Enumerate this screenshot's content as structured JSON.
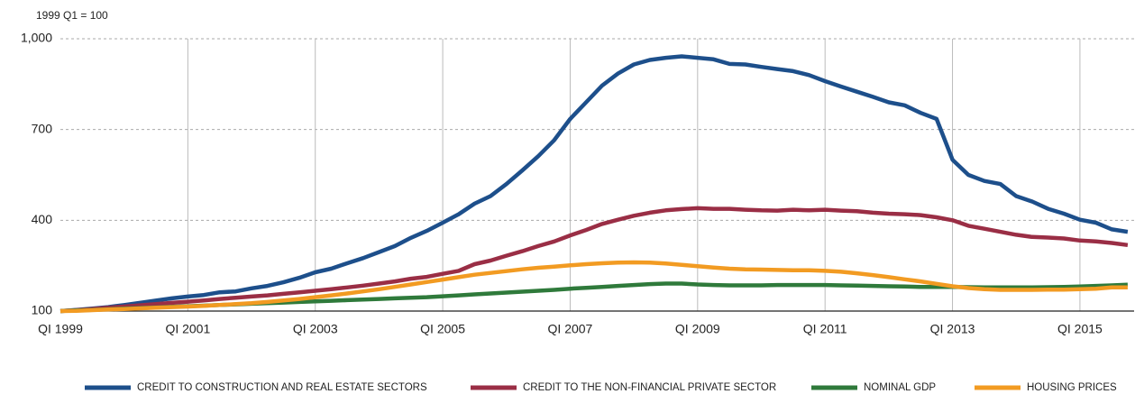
{
  "chart_data": {
    "type": "line",
    "y_unit_label": "1999 Q1 = 100",
    "x": [
      1999,
      1999.25,
      1999.5,
      1999.75,
      2000,
      2000.25,
      2000.5,
      2000.75,
      2001,
      2001.25,
      2001.5,
      2001.75,
      2002,
      2002.25,
      2002.5,
      2002.75,
      2003,
      2003.25,
      2003.5,
      2003.75,
      2004,
      2004.25,
      2004.5,
      2004.75,
      2005,
      2005.25,
      2005.5,
      2005.75,
      2006,
      2006.25,
      2006.5,
      2006.75,
      2007,
      2007.25,
      2007.5,
      2007.75,
      2008,
      2008.25,
      2008.5,
      2008.75,
      2009,
      2009.25,
      2009.5,
      2009.75,
      2010,
      2010.25,
      2010.5,
      2010.75,
      2011,
      2011.25,
      2011.5,
      2011.75,
      2012,
      2012.25,
      2012.5,
      2012.75,
      2013,
      2013.25,
      2013.5,
      2013.75,
      2014,
      2014.25,
      2014.5,
      2014.75,
      2015,
      2015.25,
      2015.5,
      2015.75
    ],
    "series": [
      {
        "name": "CREDIT TO CONSTRUCTION AND REAL ESTATE SECTORS",
        "color": "#1d4f8b",
        "values": [
          100,
          104,
          108,
          113,
          120,
          127,
          135,
          142,
          148,
          153,
          162,
          165,
          175,
          183,
          195,
          210,
          228,
          240,
          258,
          275,
          295,
          315,
          342,
          365,
          392,
          420,
          455,
          480,
          520,
          565,
          612,
          665,
          735,
          790,
          845,
          885,
          915,
          930,
          937,
          942,
          937,
          932,
          917,
          915,
          907,
          900,
          893,
          880,
          860,
          842,
          825,
          808,
          790,
          780,
          755,
          735,
          600,
          550,
          530,
          520,
          480,
          462,
          438,
          422,
          402,
          392,
          370,
          362
        ]
      },
      {
        "name": "CREDIT TO THE NON-FINANCIAL PRIVATE SECTOR",
        "color": "#9a2e45",
        "values": [
          100,
          103,
          107,
          111,
          115,
          119,
          123,
          127,
          131,
          135,
          140,
          144,
          148,
          152,
          157,
          162,
          167,
          172,
          178,
          184,
          191,
          198,
          207,
          213,
          223,
          233,
          255,
          267,
          283,
          298,
          315,
          330,
          350,
          368,
          388,
          402,
          415,
          425,
          433,
          437,
          440,
          438,
          438,
          435,
          433,
          432,
          435,
          433,
          435,
          432,
          430,
          425,
          422,
          420,
          417,
          410,
          400,
          382,
          372,
          362,
          352,
          345,
          343,
          340,
          333,
          330,
          325,
          318
        ]
      },
      {
        "name": "NOMINAL GDP",
        "color": "#2f7a3b",
        "values": [
          100,
          102,
          104,
          106,
          108,
          110,
          112,
          114,
          116,
          118,
          120,
          122,
          124,
          126,
          128,
          130,
          132,
          134,
          136,
          138,
          140,
          142,
          144,
          146,
          149,
          152,
          155,
          158,
          161,
          164,
          167,
          170,
          174,
          177,
          180,
          183,
          186,
          189,
          191,
          191,
          188,
          186,
          185,
          185,
          185,
          186,
          186,
          186,
          186,
          185,
          184,
          183,
          182,
          181,
          180,
          180,
          180,
          179,
          178,
          178,
          178,
          178,
          179,
          180,
          181,
          183,
          185,
          187
        ]
      },
      {
        "name": "HOUSING PRICES",
        "color": "#f29b22",
        "values": [
          100,
          101,
          103,
          105,
          107,
          109,
          111,
          113,
          115,
          117,
          120,
          123,
          126,
          130,
          135,
          140,
          146,
          152,
          158,
          165,
          172,
          180,
          188,
          196,
          204,
          212,
          220,
          226,
          232,
          238,
          243,
          247,
          251,
          255,
          258,
          260,
          261,
          260,
          257,
          253,
          248,
          244,
          240,
          238,
          237,
          236,
          235,
          235,
          233,
          230,
          225,
          219,
          212,
          205,
          198,
          190,
          182,
          176,
          172,
          170,
          170,
          170,
          171,
          171,
          172,
          174,
          178,
          178
        ]
      }
    ],
    "xlim": [
      1999,
      2015.85
    ],
    "xticks": [
      {
        "value": 1999,
        "label": "QI 1999"
      },
      {
        "value": 2001,
        "label": "QI 2001"
      },
      {
        "value": 2003,
        "label": "QI 2003"
      },
      {
        "value": 2005,
        "label": "QI 2005"
      },
      {
        "value": 2007,
        "label": "QI 2007"
      },
      {
        "value": 2009,
        "label": "QI 2009"
      },
      {
        "value": 2011,
        "label": "QI 2011"
      },
      {
        "value": 2013,
        "label": "QI 2013"
      },
      {
        "value": 2015,
        "label": "QI 2015"
      }
    ],
    "ylim": [
      100,
      1000
    ],
    "yticks": [
      100,
      400,
      700,
      {
        "value": 1000,
        "label": "1,000"
      }
    ],
    "grid": true
  }
}
